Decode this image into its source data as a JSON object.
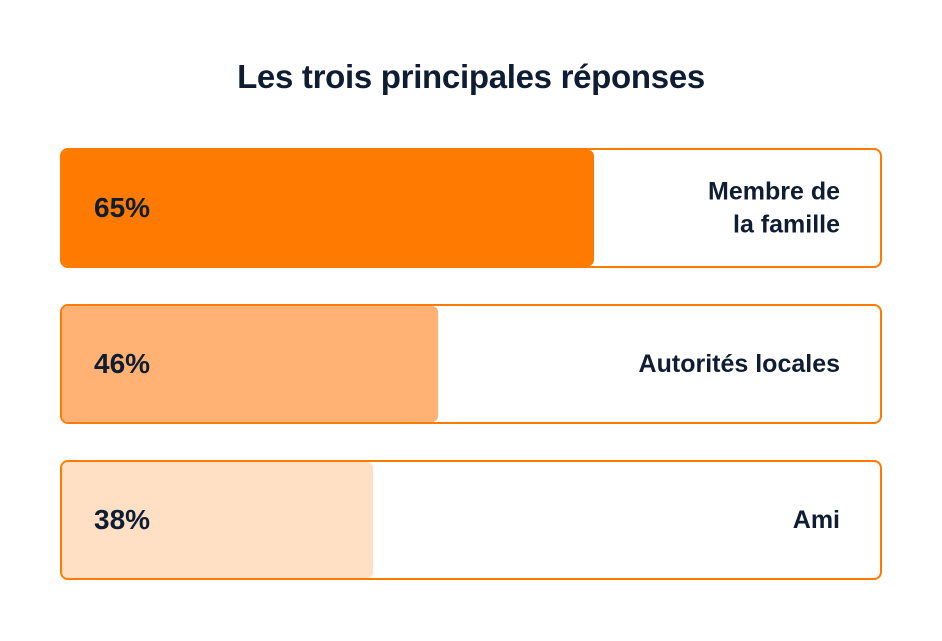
{
  "chart_data": {
    "type": "bar",
    "orientation": "horizontal",
    "title": "Les trois principales réponses",
    "xlabel": "",
    "ylabel": "",
    "xlim": [
      0,
      100
    ],
    "grid": false,
    "categories": [
      "Membre de\nla famille",
      "Autorités locales",
      "Ami"
    ],
    "values": [
      65,
      46,
      38
    ],
    "value_labels": [
      "65%",
      "46%",
      "38%"
    ],
    "colors": [
      "#ff7a00",
      "#ffb273",
      "#ffe0c4"
    ],
    "border_color": "#ff7a00"
  }
}
